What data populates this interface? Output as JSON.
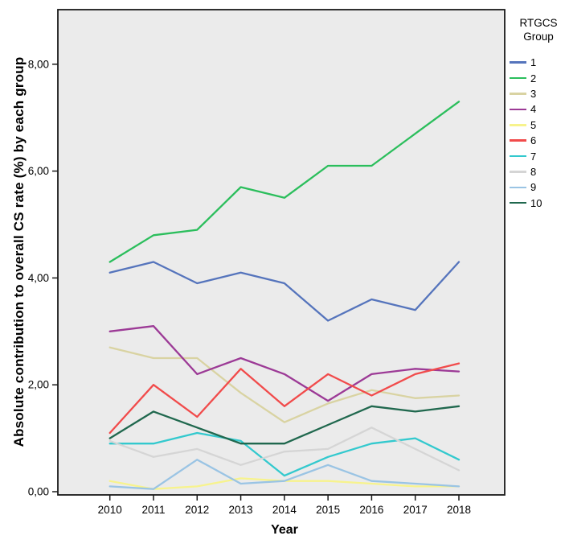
{
  "chart_data": {
    "type": "line",
    "title": "",
    "xlabel": "Year",
    "ylabel": "Absolute contribution to overall CS rate (%) by each group",
    "x": [
      "2010",
      "2011",
      "2012",
      "2013",
      "2014",
      "2015",
      "2016",
      "2017",
      "2018"
    ],
    "ylim": [
      0,
      9.05
    ],
    "yticks": {
      "values": [
        0,
        2,
        4,
        6,
        8
      ],
      "labels": [
        "0,00",
        "2,00",
        "4,00",
        "6,00",
        "8,00"
      ]
    },
    "grid": "off",
    "plot_bg": "#EBEBEB",
    "frame_color": "#1a1a1a",
    "legend": {
      "title_lines": [
        "RTGCS",
        "Group"
      ],
      "position": "right"
    },
    "series": [
      {
        "name": "1",
        "color": "#5574BC",
        "values": [
          4.1,
          4.3,
          3.9,
          4.1,
          3.9,
          3.2,
          3.6,
          3.4,
          4.3
        ]
      },
      {
        "name": "2",
        "color": "#2BBE5C",
        "values": [
          4.3,
          4.8,
          4.9,
          5.7,
          5.5,
          6.1,
          6.1,
          6.7,
          7.3
        ]
      },
      {
        "name": "3",
        "color": "#D9D3A2",
        "values": [
          2.7,
          2.5,
          2.5,
          1.85,
          1.3,
          1.65,
          1.9,
          1.75,
          1.8
        ]
      },
      {
        "name": "4",
        "color": "#9C3A96",
        "values": [
          3.0,
          3.1,
          2.2,
          2.5,
          2.2,
          1.7,
          2.2,
          2.3,
          2.25
        ]
      },
      {
        "name": "5",
        "color": "#F7F38D",
        "values": [
          0.2,
          0.05,
          0.1,
          0.25,
          0.2,
          0.2,
          0.15,
          0.1,
          0.1
        ]
      },
      {
        "name": "6",
        "color": "#F14B4B",
        "values": [
          1.1,
          2.0,
          1.4,
          2.3,
          1.6,
          2.2,
          1.8,
          2.2,
          2.4
        ]
      },
      {
        "name": "7",
        "color": "#33C9CE",
        "values": [
          0.9,
          0.9,
          1.1,
          0.95,
          0.3,
          0.65,
          0.9,
          1.0,
          0.6
        ]
      },
      {
        "name": "8",
        "color": "#D5D5D5",
        "values": [
          0.95,
          0.65,
          0.8,
          0.5,
          0.75,
          0.8,
          1.2,
          0.8,
          0.4
        ]
      },
      {
        "name": "9",
        "color": "#9AC4E4",
        "values": [
          0.1,
          0.05,
          0.6,
          0.15,
          0.2,
          0.5,
          0.2,
          0.15,
          0.1
        ]
      },
      {
        "name": "10",
        "color": "#20684E",
        "values": [
          1.0,
          1.5,
          1.2,
          0.9,
          0.9,
          1.25,
          1.6,
          1.5,
          1.6
        ]
      }
    ]
  }
}
